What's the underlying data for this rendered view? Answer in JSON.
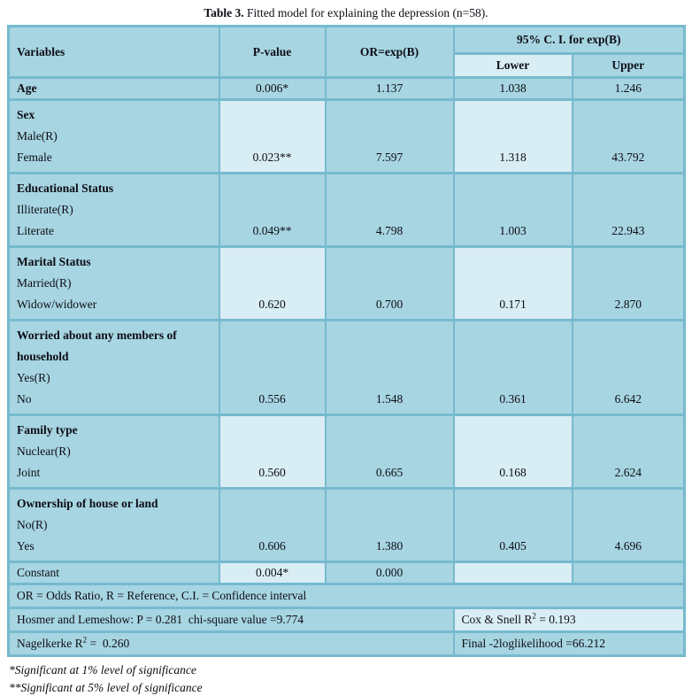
{
  "title": {
    "prefix": "Table 3.",
    "rest": " Fitted model for explaining the depression (n=58)."
  },
  "table": {
    "headers": {
      "variables": "Variables",
      "p_value": "P-value",
      "or": "OR=exp(B)",
      "ci": "95% C. I. for exp(B)",
      "lower": "Lower",
      "upper": "Upper"
    },
    "rows": [
      {
        "title_lines": [
          "Age"
        ],
        "plain": false,
        "items": [],
        "p": "0.006*",
        "or": "1.137",
        "lower": "1.038",
        "upper": "1.246",
        "pale": false
      },
      {
        "title_lines": [
          "Sex"
        ],
        "plain": false,
        "items": [
          "Male(R)",
          "Female"
        ],
        "p": "0.023**",
        "or": "7.597",
        "lower": "1.318",
        "upper": "43.792",
        "pale": true
      },
      {
        "title_lines": [
          "Educational Status"
        ],
        "plain": false,
        "items": [
          "Illiterate(R)",
          "Literate"
        ],
        "p": "0.049**",
        "or": "4.798",
        "lower": "1.003",
        "upper": "22.943",
        "pale": false
      },
      {
        "title_lines": [
          "Marital Status"
        ],
        "plain": false,
        "items": [
          "Married(R)",
          "Widow/widower"
        ],
        "p": "0.620",
        "or": "0.700",
        "lower": "0.171",
        "upper": "2.870",
        "pale": true
      },
      {
        "title_lines": [
          "Worried about any members of",
          "household"
        ],
        "plain": false,
        "items": [
          "Yes(R)",
          "No"
        ],
        "p": "0.556",
        "or": "1.548",
        "lower": "0.361",
        "upper": "6.642",
        "pale": false
      },
      {
        "title_lines": [
          "Family type"
        ],
        "plain": false,
        "items": [
          "Nuclear(R)",
          "Joint"
        ],
        "p": "0.560",
        "or": "0.665",
        "lower": "0.168",
        "upper": "2.624",
        "pale": true
      },
      {
        "title_lines": [
          "Ownership of house or land"
        ],
        "plain": false,
        "items": [
          "No(R)",
          "Yes"
        ],
        "p": "0.606",
        "or": "1.380",
        "lower": "0.405",
        "upper": "4.696",
        "pale": false
      },
      {
        "title_lines": [
          "Constant"
        ],
        "plain": true,
        "items": [],
        "p": "0.004*",
        "or": "0.000",
        "lower": "",
        "upper": "",
        "pale": true
      }
    ],
    "footer": {
      "abbrev": "OR = Odds Ratio, R = Reference, C.I. = Confidence interval",
      "hosmer": "Hosmer and Lemeshow: P = 0.281  chi-square value =9.774",
      "cox_prefix": "Cox & Snell R",
      "cox_sup": "2",
      "cox_suffix": " = 0.193",
      "nagelkerke_prefix": "Nagelkerke R",
      "nagelkerke_sup": "2",
      "nagelkerke_suffix": " =  0.260",
      "final": "Final -2loglikelihood =66.212"
    }
  },
  "footnotes": [
    "*Significant at 1% level of significance",
    "**Significant at 5% level of significance"
  ],
  "colors": {
    "cell_background": "#a7d5e2",
    "pale_background": "#d9edf4",
    "border": "#76bace",
    "text": "#0d0d15"
  }
}
